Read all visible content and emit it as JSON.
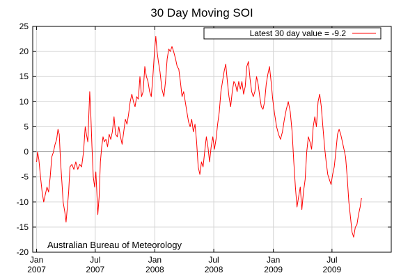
{
  "chart_data": {
    "type": "line",
    "title": "30 Day Moving SOI",
    "xlabel": "",
    "ylabel": "",
    "credit": "Australian Bureau of Meteorology",
    "legend": {
      "label": "Latest 30 day value = -9.2",
      "placement": "top-right",
      "color": "#ff0000"
    },
    "ylim": [
      -20,
      25
    ],
    "yticks": [
      -20,
      -15,
      -10,
      -5,
      0,
      5,
      10,
      15,
      20,
      25
    ],
    "xlim": [
      "2006-12-20",
      "2009-12-31"
    ],
    "xticks": [
      {
        "date": "2007-01-01",
        "line1": "Jan",
        "line2": "2007"
      },
      {
        "date": "2007-07-01",
        "line1": "Jul",
        "line2": "2007"
      },
      {
        "date": "2008-01-01",
        "line1": "Jan",
        "line2": "2008"
      },
      {
        "date": "2008-07-01",
        "line1": "Jul",
        "line2": "2008"
      },
      {
        "date": "2009-01-01",
        "line1": "Jan",
        "line2": "2009"
      },
      {
        "date": "2009-07-01",
        "line1": "Jul",
        "line2": "2009"
      }
    ],
    "grid": true,
    "zero_line": true,
    "series": [
      {
        "name": "Latest 30 day value = -9.2",
        "color": "#ff0000",
        "points": [
          [
            "2007-01-01",
            -2.0
          ],
          [
            "2007-01-04",
            0.0
          ],
          [
            "2007-01-08",
            -1.5
          ],
          [
            "2007-01-13",
            -5.0
          ],
          [
            "2007-01-18",
            -8.0
          ],
          [
            "2007-01-23",
            -10.0
          ],
          [
            "2007-01-28",
            -8.5
          ],
          [
            "2007-02-02",
            -7.0
          ],
          [
            "2007-02-07",
            -8.0
          ],
          [
            "2007-02-12",
            -5.0
          ],
          [
            "2007-02-17",
            -1.0
          ],
          [
            "2007-02-22",
            0.0
          ],
          [
            "2007-02-27",
            1.5
          ],
          [
            "2007-03-04",
            2.5
          ],
          [
            "2007-03-08",
            4.5
          ],
          [
            "2007-03-12",
            3.5
          ],
          [
            "2007-03-16",
            -2.0
          ],
          [
            "2007-03-20",
            -6.0
          ],
          [
            "2007-03-24",
            -10.0
          ],
          [
            "2007-03-29",
            -12.0
          ],
          [
            "2007-04-02",
            -14.0
          ],
          [
            "2007-04-06",
            -11.0
          ],
          [
            "2007-04-10",
            -8.0
          ],
          [
            "2007-04-14",
            -3.0
          ],
          [
            "2007-04-20",
            -2.5
          ],
          [
            "2007-04-26",
            -3.5
          ],
          [
            "2007-05-02",
            -2.0
          ],
          [
            "2007-05-08",
            -3.5
          ],
          [
            "2007-05-14",
            -2.5
          ],
          [
            "2007-05-20",
            -3.0
          ],
          [
            "2007-05-26",
            0.0
          ],
          [
            "2007-05-31",
            5.0
          ],
          [
            "2007-06-04",
            3.5
          ],
          [
            "2007-06-08",
            2.0
          ],
          [
            "2007-06-11",
            7.0
          ],
          [
            "2007-06-14",
            12.0
          ],
          [
            "2007-06-17",
            8.0
          ],
          [
            "2007-06-21",
            1.0
          ],
          [
            "2007-06-25",
            -5.0
          ],
          [
            "2007-06-29",
            -7.0
          ],
          [
            "2007-07-03",
            -4.0
          ],
          [
            "2007-07-06",
            -8.0
          ],
          [
            "2007-07-09",
            -12.5
          ],
          [
            "2007-07-13",
            -9.0
          ],
          [
            "2007-07-17",
            -2.0
          ],
          [
            "2007-07-21",
            1.0
          ],
          [
            "2007-07-25",
            3.0
          ],
          [
            "2007-07-29",
            2.0
          ],
          [
            "2007-08-03",
            2.5
          ],
          [
            "2007-08-08",
            1.0
          ],
          [
            "2007-08-13",
            3.5
          ],
          [
            "2007-08-18",
            2.5
          ],
          [
            "2007-08-23",
            4.0
          ],
          [
            "2007-08-28",
            7.0
          ],
          [
            "2007-09-02",
            3.5
          ],
          [
            "2007-09-07",
            3.0
          ],
          [
            "2007-09-12",
            5.0
          ],
          [
            "2007-09-17",
            3.0
          ],
          [
            "2007-09-22",
            1.5
          ],
          [
            "2007-09-27",
            4.0
          ],
          [
            "2007-10-02",
            6.5
          ],
          [
            "2007-10-07",
            5.5
          ],
          [
            "2007-10-12",
            7.5
          ],
          [
            "2007-10-17",
            10.0
          ],
          [
            "2007-10-22",
            11.5
          ],
          [
            "2007-10-27",
            10.0
          ],
          [
            "2007-11-01",
            9.0
          ],
          [
            "2007-11-06",
            11.0
          ],
          [
            "2007-11-11",
            10.5
          ],
          [
            "2007-11-16",
            15.0
          ],
          [
            "2007-11-21",
            11.0
          ],
          [
            "2007-11-26",
            12.0
          ],
          [
            "2007-12-01",
            17.0
          ],
          [
            "2007-12-06",
            15.0
          ],
          [
            "2007-12-11",
            14.0
          ],
          [
            "2007-12-16",
            12.0
          ],
          [
            "2007-12-21",
            11.0
          ],
          [
            "2007-12-26",
            15.0
          ],
          [
            "2007-12-31",
            20.0
          ],
          [
            "2008-01-04",
            23.0
          ],
          [
            "2008-01-08",
            20.0
          ],
          [
            "2008-01-12",
            18.0
          ],
          [
            "2008-01-17",
            16.0
          ],
          [
            "2008-01-23",
            12.5
          ],
          [
            "2008-01-29",
            11.0
          ],
          [
            "2008-02-03",
            14.0
          ],
          [
            "2008-02-08",
            18.5
          ],
          [
            "2008-02-13",
            20.5
          ],
          [
            "2008-02-18",
            20.0
          ],
          [
            "2008-02-23",
            21.0
          ],
          [
            "2008-02-28",
            20.0
          ],
          [
            "2008-03-05",
            18.5
          ],
          [
            "2008-03-10",
            17.0
          ],
          [
            "2008-03-15",
            16.5
          ],
          [
            "2008-03-20",
            14.0
          ],
          [
            "2008-03-25",
            11.0
          ],
          [
            "2008-03-30",
            12.0
          ],
          [
            "2008-04-04",
            10.0
          ],
          [
            "2008-04-09",
            8.0
          ],
          [
            "2008-04-14",
            6.0
          ],
          [
            "2008-04-19",
            5.0
          ],
          [
            "2008-04-24",
            6.5
          ],
          [
            "2008-04-29",
            4.0
          ],
          [
            "2008-05-04",
            5.5
          ],
          [
            "2008-05-09",
            2.0
          ],
          [
            "2008-05-14",
            -3.0
          ],
          [
            "2008-05-19",
            -4.5
          ],
          [
            "2008-05-24",
            -2.0
          ],
          [
            "2008-05-29",
            -3.0
          ],
          [
            "2008-06-03",
            0.0
          ],
          [
            "2008-06-08",
            3.0
          ],
          [
            "2008-06-13",
            1.0
          ],
          [
            "2008-06-18",
            -2.0
          ],
          [
            "2008-06-23",
            1.0
          ],
          [
            "2008-06-28",
            3.0
          ],
          [
            "2008-07-03",
            0.5
          ],
          [
            "2008-07-08",
            2.5
          ],
          [
            "2008-07-13",
            5.5
          ],
          [
            "2008-07-18",
            8.0
          ],
          [
            "2008-07-23",
            12.0
          ],
          [
            "2008-07-28",
            14.0
          ],
          [
            "2008-08-02",
            16.0
          ],
          [
            "2008-08-07",
            17.5
          ],
          [
            "2008-08-12",
            14.0
          ],
          [
            "2008-08-17",
            11.0
          ],
          [
            "2008-08-22",
            9.0
          ],
          [
            "2008-08-27",
            12.0
          ],
          [
            "2008-09-01",
            14.0
          ],
          [
            "2008-09-06",
            13.5
          ],
          [
            "2008-09-11",
            12.0
          ],
          [
            "2008-09-16",
            14.0
          ],
          [
            "2008-09-21",
            12.5
          ],
          [
            "2008-09-26",
            14.0
          ],
          [
            "2008-10-01",
            11.5
          ],
          [
            "2008-10-06",
            13.0
          ],
          [
            "2008-10-11",
            17.0
          ],
          [
            "2008-10-16",
            18.0
          ],
          [
            "2008-10-21",
            14.5
          ],
          [
            "2008-10-26",
            12.0
          ],
          [
            "2008-10-31",
            11.0
          ],
          [
            "2008-11-05",
            12.0
          ],
          [
            "2008-11-10",
            15.0
          ],
          [
            "2008-11-15",
            13.5
          ],
          [
            "2008-11-20",
            11.0
          ],
          [
            "2008-11-25",
            9.0
          ],
          [
            "2008-11-30",
            8.5
          ],
          [
            "2008-12-05",
            10.0
          ],
          [
            "2008-12-10",
            13.5
          ],
          [
            "2008-12-15",
            15.5
          ],
          [
            "2008-12-20",
            17.0
          ],
          [
            "2008-12-25",
            14.0
          ],
          [
            "2008-12-30",
            10.5
          ],
          [
            "2009-01-05",
            7.5
          ],
          [
            "2009-01-11",
            5.0
          ],
          [
            "2009-01-17",
            3.5
          ],
          [
            "2009-01-23",
            2.5
          ],
          [
            "2009-01-29",
            4.0
          ],
          [
            "2009-02-04",
            6.5
          ],
          [
            "2009-02-10",
            8.5
          ],
          [
            "2009-02-16",
            10.0
          ],
          [
            "2009-02-22",
            8.0
          ],
          [
            "2009-02-28",
            4.0
          ],
          [
            "2009-03-05",
            -2.0
          ],
          [
            "2009-03-10",
            -7.0
          ],
          [
            "2009-03-15",
            -11.0
          ],
          [
            "2009-03-20",
            -9.0
          ],
          [
            "2009-03-25",
            -7.0
          ],
          [
            "2009-03-30",
            -11.5
          ],
          [
            "2009-04-04",
            -8.0
          ],
          [
            "2009-04-09",
            -5.5
          ],
          [
            "2009-04-14",
            0.0
          ],
          [
            "2009-04-19",
            3.0
          ],
          [
            "2009-04-24",
            2.0
          ],
          [
            "2009-04-29",
            0.5
          ],
          [
            "2009-05-04",
            5.0
          ],
          [
            "2009-05-09",
            7.0
          ],
          [
            "2009-05-14",
            5.0
          ],
          [
            "2009-05-19",
            10.0
          ],
          [
            "2009-05-24",
            11.5
          ],
          [
            "2009-05-29",
            9.0
          ],
          [
            "2009-06-03",
            5.0
          ],
          [
            "2009-06-08",
            1.0
          ],
          [
            "2009-06-13",
            -2.0
          ],
          [
            "2009-06-18",
            -4.5
          ],
          [
            "2009-06-23",
            -5.5
          ],
          [
            "2009-06-28",
            -6.5
          ],
          [
            "2009-07-03",
            -4.5
          ],
          [
            "2009-07-08",
            -3.0
          ],
          [
            "2009-07-13",
            0.0
          ],
          [
            "2009-07-18",
            3.5
          ],
          [
            "2009-07-23",
            4.5
          ],
          [
            "2009-07-28",
            3.5
          ],
          [
            "2009-08-02",
            2.0
          ],
          [
            "2009-08-07",
            0.5
          ],
          [
            "2009-08-12",
            -1.0
          ],
          [
            "2009-08-17",
            -5.0
          ],
          [
            "2009-08-22",
            -10.0
          ],
          [
            "2009-08-27",
            -13.0
          ],
          [
            "2009-09-01",
            -16.0
          ],
          [
            "2009-09-06",
            -17.0
          ],
          [
            "2009-09-11",
            -15.0
          ],
          [
            "2009-09-16",
            -14.5
          ],
          [
            "2009-09-21",
            -12.5
          ],
          [
            "2009-09-26",
            -11.0
          ],
          [
            "2009-09-30",
            -9.2
          ]
        ]
      }
    ]
  }
}
